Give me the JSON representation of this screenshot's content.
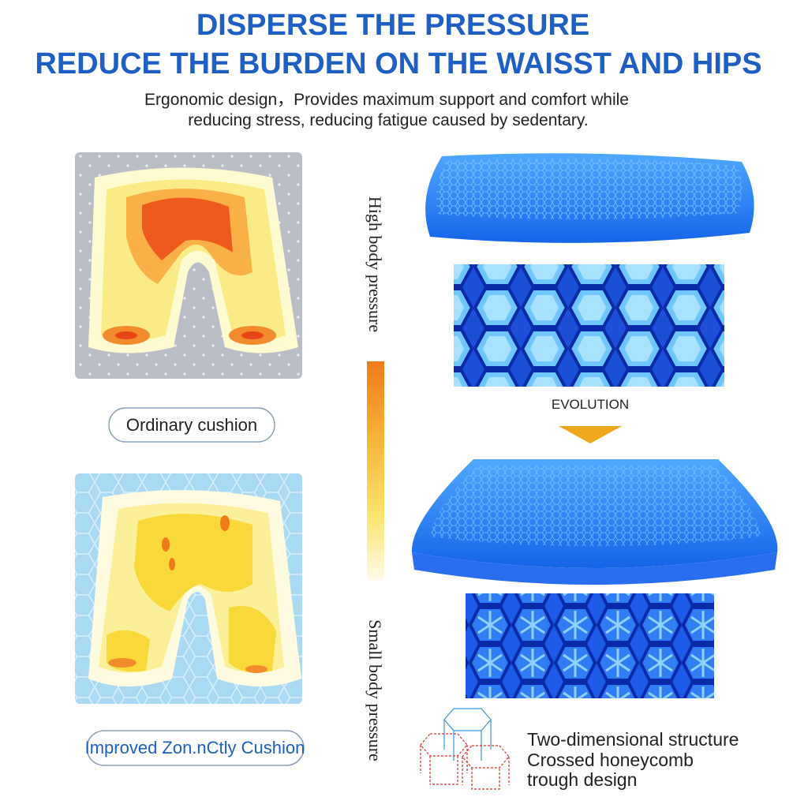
{
  "header": {
    "title_line1": "DISPERSE THE PRESSURE",
    "title_line2": "REDUCE THE BURDEN ON THE WAISST AND HIPS",
    "subtitle_line1": "Ergonomic design，Provides maximum support and comfort while",
    "subtitle_line2": "reducing stress, reducing fatigue caused by sedentary."
  },
  "left": {
    "ordinary_label": "Ordinary cushion",
    "improved_label": "Improved Zon.nCtly Cushion"
  },
  "scale": {
    "high": "High body pressure",
    "low": "Small body pressure"
  },
  "right": {
    "evolution": "EVOLUTION",
    "features": [
      "Two-dimensional structure",
      "Crossed honeycomb",
      "trough design"
    ]
  }
}
